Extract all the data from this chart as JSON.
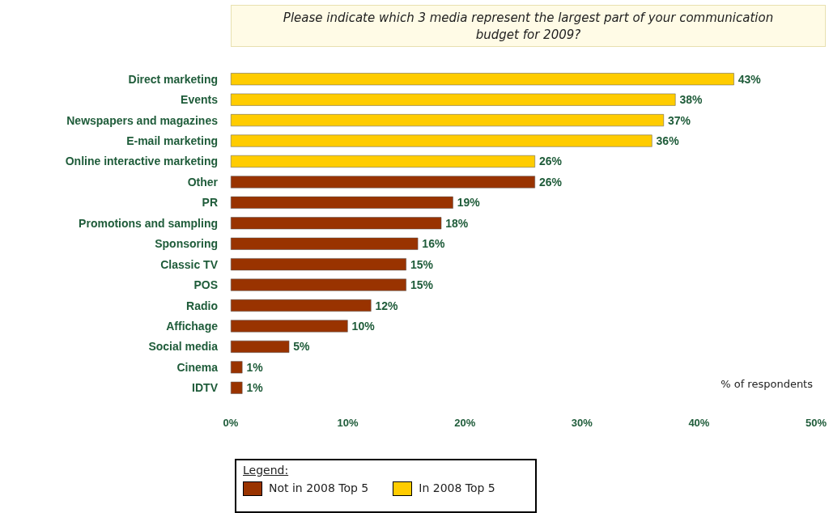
{
  "chart_data": {
    "type": "bar",
    "orientation": "horizontal",
    "stacked": true,
    "title": "Please indicate which 3 media represent the largest part of your communication budget for 2009?",
    "categories": [
      "Direct marketing",
      "Events",
      "Newspapers and magazines",
      "E-mail marketing",
      "Online interactive marketing",
      "Other",
      "PR",
      "Promotions and sampling",
      "Sponsoring",
      "Classic TV",
      "POS",
      "Radio",
      "Affichage",
      "Social media",
      "Cinema",
      "IDTV"
    ],
    "series": [
      {
        "name": "Not in 2008 Top 5",
        "color": "#993300",
        "values": [
          null,
          null,
          null,
          null,
          null,
          26,
          19,
          18,
          16,
          15,
          15,
          12,
          10,
          5,
          1,
          1
        ],
        "value_labels": [
          null,
          null,
          null,
          null,
          null,
          "26%",
          "19%",
          "18%",
          "16%",
          "15%",
          "15%",
          "12%",
          "10%",
          "5%",
          "1%",
          "1%"
        ]
      },
      {
        "name": "In 2008 Top 5",
        "color": "#ffcc00",
        "values": [
          43,
          38,
          37,
          36,
          26,
          null,
          null,
          null,
          null,
          null,
          null,
          null,
          null,
          null,
          null,
          null
        ],
        "value_labels": [
          "43%",
          "38%",
          "37%",
          "36%",
          "26%",
          null,
          null,
          null,
          null,
          null,
          null,
          null,
          null,
          null,
          null,
          null
        ]
      }
    ],
    "xlim": [
      0,
      50
    ],
    "xticks": [
      {
        "value": 0,
        "label": "0%"
      },
      {
        "value": 10,
        "label": "10%"
      },
      {
        "value": 20,
        "label": "20%"
      },
      {
        "value": 30,
        "label": "30%"
      },
      {
        "value": 40,
        "label": "40%"
      },
      {
        "value": 50,
        "label": "50%"
      }
    ],
    "annotations": [
      "% of respondents"
    ],
    "legend": "bottom",
    "legend_title": "Legend:",
    "grid": false
  }
}
